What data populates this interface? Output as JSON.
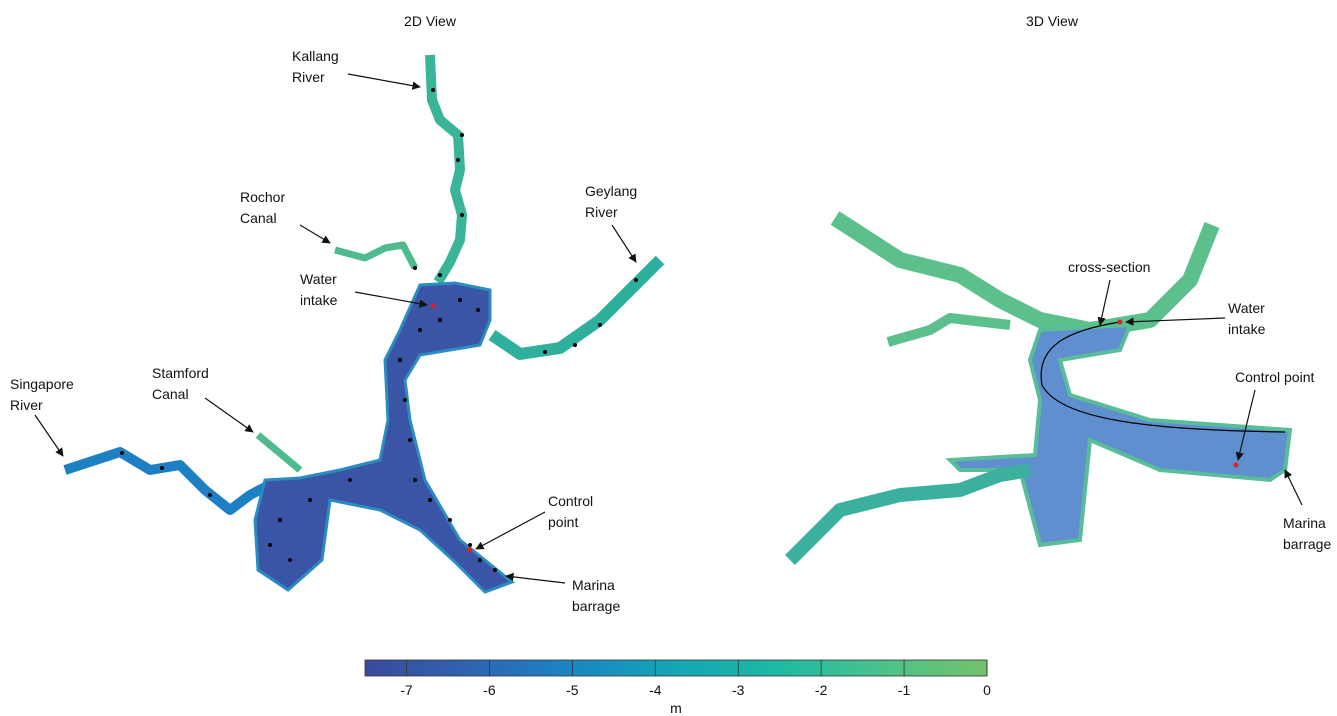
{
  "panels": [
    {
      "title": "2D View",
      "labels": [
        [
          "Kallang",
          "River"
        ],
        [
          "Rochor",
          "Canal"
        ],
        [
          "Water",
          "intake"
        ],
        [
          "Geylang",
          "River"
        ],
        [
          "Singapore",
          "River"
        ],
        [
          "Stamford",
          "Canal"
        ],
        [
          "Control",
          "point"
        ],
        [
          "Marina",
          "barrage"
        ]
      ]
    },
    {
      "title": "3D View",
      "labels": [
        [
          "cross-section"
        ],
        [
          "Water",
          "intake"
        ],
        [
          "Control point"
        ],
        [
          "Marina",
          "barrage"
        ]
      ]
    }
  ],
  "colorbar": {
    "lim": [
      -7.5,
      0
    ],
    "ticks": [
      -7,
      -6,
      -5,
      -4,
      -3,
      -2,
      -1,
      0
    ],
    "label": "m",
    "colors": [
      "#3b4a9e",
      "#2f63b0",
      "#1a86c4",
      "#14a6b5",
      "#1ebaa2",
      "#4cc28a",
      "#72c26a"
    ]
  }
}
